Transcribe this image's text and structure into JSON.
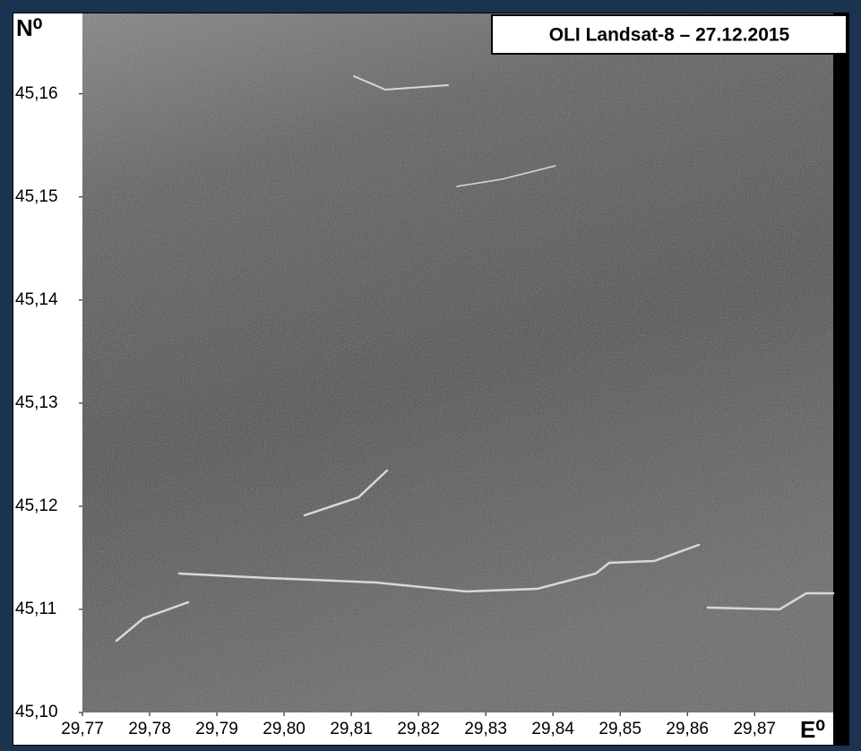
{
  "chart_data": {
    "type": "image-map",
    "title": "OLI Landsat-8 – 27.12.2015",
    "y_label": "N⁰",
    "x_label": "E⁰",
    "xlim": [
      29.77,
      29.8817
    ],
    "ylim": [
      45.1,
      45.1678
    ],
    "xticks": [
      {
        "value": 29.77,
        "label": "29,77"
      },
      {
        "value": 29.78,
        "label": "29,78"
      },
      {
        "value": 29.79,
        "label": "29,79"
      },
      {
        "value": 29.8,
        "label": "29,80"
      },
      {
        "value": 29.81,
        "label": "29,81"
      },
      {
        "value": 29.82,
        "label": "29,82"
      },
      {
        "value": 29.83,
        "label": "29,83"
      },
      {
        "value": 29.84,
        "label": "29,84"
      },
      {
        "value": 29.85,
        "label": "29,85"
      },
      {
        "value": 29.86,
        "label": "29,86"
      },
      {
        "value": 29.87,
        "label": "29,87"
      }
    ],
    "yticks": [
      {
        "value": 45.1,
        "label": "45,10"
      },
      {
        "value": 45.11,
        "label": "45,11"
      },
      {
        "value": 45.12,
        "label": "45,12"
      },
      {
        "value": 45.13,
        "label": "45,13"
      },
      {
        "value": 45.14,
        "label": "45,14"
      },
      {
        "value": 45.15,
        "label": "45,15"
      },
      {
        "value": 45.16,
        "label": "45,16"
      }
    ]
  }
}
